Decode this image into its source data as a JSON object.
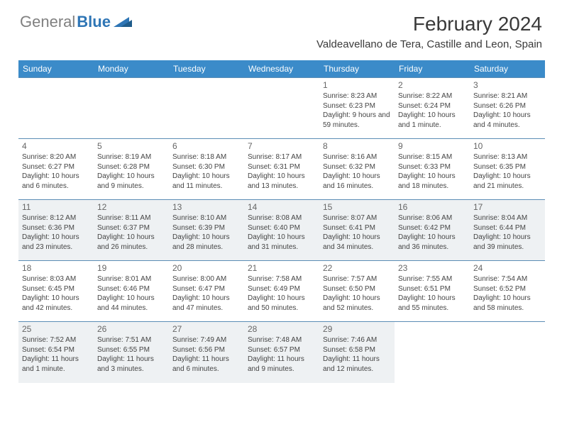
{
  "logo": {
    "gray": "General",
    "blue": "Blue"
  },
  "title": "February 2024",
  "location": "Valdeavellano de Tera, Castille and Leon, Spain",
  "colors": {
    "header_bg": "#3b8bc9",
    "header_text": "#ffffff",
    "cell_border": "#5b8db5",
    "shaded_bg": "#eef1f3",
    "logo_gray": "#808080",
    "logo_blue": "#2e75b5"
  },
  "dayHeaders": [
    "Sunday",
    "Monday",
    "Tuesday",
    "Wednesday",
    "Thursday",
    "Friday",
    "Saturday"
  ],
  "leadingBlanks": 4,
  "days": [
    {
      "n": 1,
      "sr": "8:23 AM",
      "ss": "6:23 PM",
      "dl": "9 hours and 59 minutes."
    },
    {
      "n": 2,
      "sr": "8:22 AM",
      "ss": "6:24 PM",
      "dl": "10 hours and 1 minute."
    },
    {
      "n": 3,
      "sr": "8:21 AM",
      "ss": "6:26 PM",
      "dl": "10 hours and 4 minutes."
    },
    {
      "n": 4,
      "sr": "8:20 AM",
      "ss": "6:27 PM",
      "dl": "10 hours and 6 minutes."
    },
    {
      "n": 5,
      "sr": "8:19 AM",
      "ss": "6:28 PM",
      "dl": "10 hours and 9 minutes."
    },
    {
      "n": 6,
      "sr": "8:18 AM",
      "ss": "6:30 PM",
      "dl": "10 hours and 11 minutes."
    },
    {
      "n": 7,
      "sr": "8:17 AM",
      "ss": "6:31 PM",
      "dl": "10 hours and 13 minutes."
    },
    {
      "n": 8,
      "sr": "8:16 AM",
      "ss": "6:32 PM",
      "dl": "10 hours and 16 minutes."
    },
    {
      "n": 9,
      "sr": "8:15 AM",
      "ss": "6:33 PM",
      "dl": "10 hours and 18 minutes."
    },
    {
      "n": 10,
      "sr": "8:13 AM",
      "ss": "6:35 PM",
      "dl": "10 hours and 21 minutes."
    },
    {
      "n": 11,
      "sr": "8:12 AM",
      "ss": "6:36 PM",
      "dl": "10 hours and 23 minutes."
    },
    {
      "n": 12,
      "sr": "8:11 AM",
      "ss": "6:37 PM",
      "dl": "10 hours and 26 minutes."
    },
    {
      "n": 13,
      "sr": "8:10 AM",
      "ss": "6:39 PM",
      "dl": "10 hours and 28 minutes."
    },
    {
      "n": 14,
      "sr": "8:08 AM",
      "ss": "6:40 PM",
      "dl": "10 hours and 31 minutes."
    },
    {
      "n": 15,
      "sr": "8:07 AM",
      "ss": "6:41 PM",
      "dl": "10 hours and 34 minutes."
    },
    {
      "n": 16,
      "sr": "8:06 AM",
      "ss": "6:42 PM",
      "dl": "10 hours and 36 minutes."
    },
    {
      "n": 17,
      "sr": "8:04 AM",
      "ss": "6:44 PM",
      "dl": "10 hours and 39 minutes."
    },
    {
      "n": 18,
      "sr": "8:03 AM",
      "ss": "6:45 PM",
      "dl": "10 hours and 42 minutes."
    },
    {
      "n": 19,
      "sr": "8:01 AM",
      "ss": "6:46 PM",
      "dl": "10 hours and 44 minutes."
    },
    {
      "n": 20,
      "sr": "8:00 AM",
      "ss": "6:47 PM",
      "dl": "10 hours and 47 minutes."
    },
    {
      "n": 21,
      "sr": "7:58 AM",
      "ss": "6:49 PM",
      "dl": "10 hours and 50 minutes."
    },
    {
      "n": 22,
      "sr": "7:57 AM",
      "ss": "6:50 PM",
      "dl": "10 hours and 52 minutes."
    },
    {
      "n": 23,
      "sr": "7:55 AM",
      "ss": "6:51 PM",
      "dl": "10 hours and 55 minutes."
    },
    {
      "n": 24,
      "sr": "7:54 AM",
      "ss": "6:52 PM",
      "dl": "10 hours and 58 minutes."
    },
    {
      "n": 25,
      "sr": "7:52 AM",
      "ss": "6:54 PM",
      "dl": "11 hours and 1 minute."
    },
    {
      "n": 26,
      "sr": "7:51 AM",
      "ss": "6:55 PM",
      "dl": "11 hours and 3 minutes."
    },
    {
      "n": 27,
      "sr": "7:49 AM",
      "ss": "6:56 PM",
      "dl": "11 hours and 6 minutes."
    },
    {
      "n": 28,
      "sr": "7:48 AM",
      "ss": "6:57 PM",
      "dl": "11 hours and 9 minutes."
    },
    {
      "n": 29,
      "sr": "7:46 AM",
      "ss": "6:58 PM",
      "dl": "11 hours and 12 minutes."
    }
  ],
  "shadedRows": [
    2,
    4
  ],
  "labels": {
    "sunrise": "Sunrise:",
    "sunset": "Sunset:",
    "daylight": "Daylight:"
  }
}
